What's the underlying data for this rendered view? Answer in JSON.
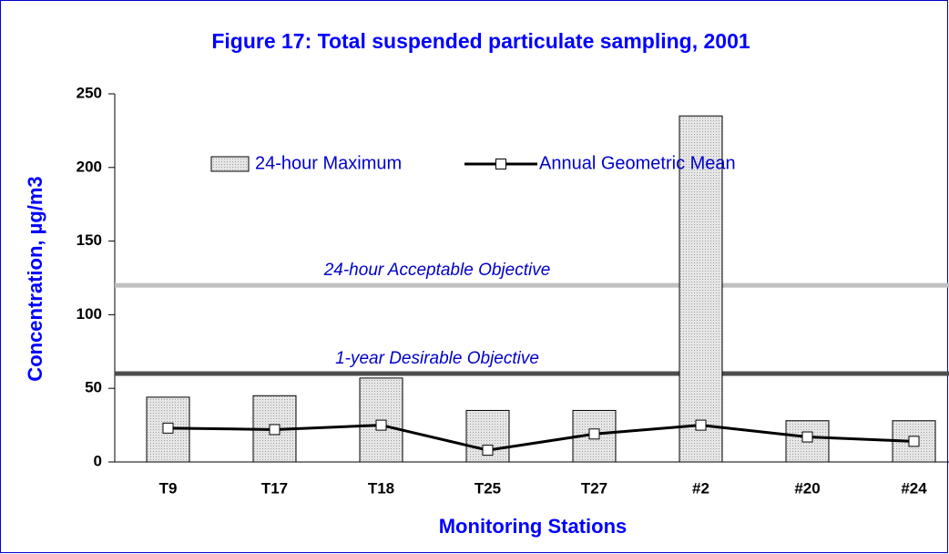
{
  "chart_data": {
    "type": "bar",
    "title": "Figure 17:  Total suspended particulate sampling, 2001",
    "x_label": "Monitoring  Stations",
    "y_label": "Concentration, µg/m3",
    "categories": [
      "T9",
      "T17",
      "T18",
      "T25",
      "T27",
      "#2",
      "#20",
      "#24"
    ],
    "series": [
      {
        "name": "24-hour  Maximum",
        "type": "bar",
        "color": "#d9d9d9",
        "values": [
          44,
          45,
          57,
          35,
          35,
          235,
          28,
          28
        ]
      },
      {
        "name": "Annual Geometric Mean",
        "type": "line",
        "color": "#000000",
        "values": [
          23,
          22,
          25,
          8,
          19,
          25,
          17,
          14
        ]
      }
    ],
    "reference_lines": [
      {
        "value": 120,
        "label": "24-hour  Acceptable  Objective",
        "color": "#c0c0c0"
      },
      {
        "value": 60,
        "label": "1-year  Desirable  Objective",
        "color": "#4d4d4d"
      }
    ],
    "ylim": [
      0,
      250
    ],
    "yticks": [
      0,
      50,
      100,
      150,
      200,
      250
    ]
  }
}
